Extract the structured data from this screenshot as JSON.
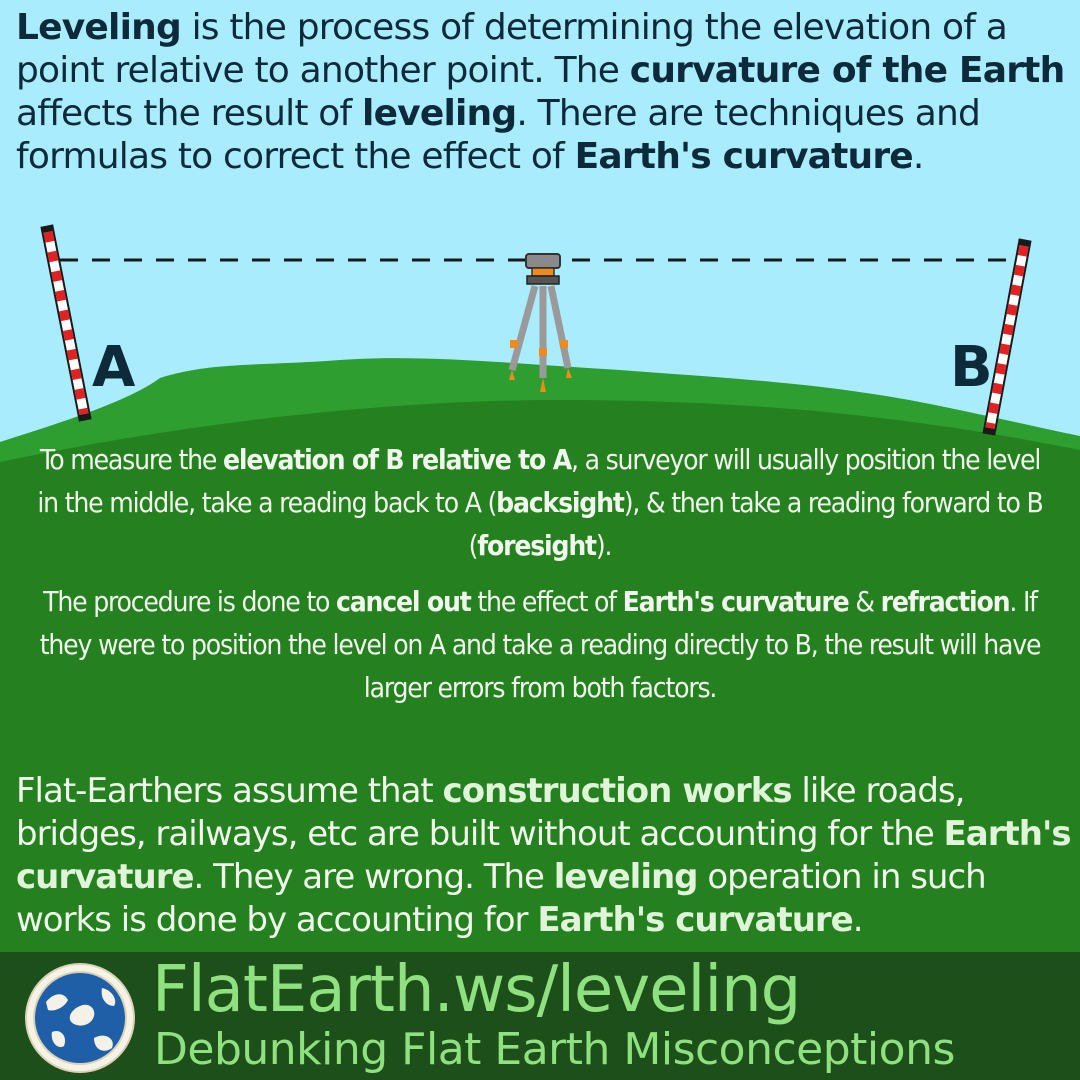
{
  "intro": [
    {
      "t": "Leveling",
      "b": true
    },
    {
      "t": " is the process of determining the elevation of a point relative to another point. The "
    },
    {
      "t": "curvature of the Earth",
      "b": true
    },
    {
      "t": " affects the result of "
    },
    {
      "t": "leveling",
      "b": true
    },
    {
      "t": ". There are techniques and formulas to correct the effect of "
    },
    {
      "t": "Earth's curvature",
      "b": true
    },
    {
      "t": "."
    }
  ],
  "diagram": {
    "point_a_label": "A",
    "point_b_label": "B"
  },
  "explanation": [
    [
      {
        "t": "To measure the "
      },
      {
        "t": "elevation of B relative to A",
        "b": true
      },
      {
        "t": ", a surveyor will usually position the level in the middle, take a reading back to A ("
      },
      {
        "t": "backsight",
        "b": true
      },
      {
        "t": "), & then take a reading forward to B ("
      },
      {
        "t": "foresight",
        "b": true
      },
      {
        "t": ")."
      }
    ],
    [
      {
        "t": "The procedure is done to "
      },
      {
        "t": "cancel out",
        "b": true
      },
      {
        "t": " the effect of "
      },
      {
        "t": "Earth's curvature",
        "b": true
      },
      {
        "t": " & "
      },
      {
        "t": "refraction",
        "b": true
      },
      {
        "t": ". If they were to position the level on A and take a reading directly to B, the result will have larger errors from both factors."
      }
    ]
  ],
  "claim": [
    {
      "t": "Flat-Earthers assume that "
    },
    {
      "t": "construction works",
      "b": true
    },
    {
      "t": " like roads, bridges, railways, etc are built without accounting for the "
    },
    {
      "t": "Earth's curvature",
      "b": true
    },
    {
      "t": ". They are wrong. The "
    },
    {
      "t": "leveling",
      "b": true
    },
    {
      "t": " operation in such works is done by accounting for "
    },
    {
      "t": "Earth's curvature",
      "b": true
    },
    {
      "t": "."
    }
  ],
  "footer": {
    "site": "FlatEarth.ws/leveling",
    "tagline": "Debunking Flat Earth Misconceptions"
  },
  "colors": {
    "sky": "#a9ecfd",
    "hill": "#2e9e30",
    "ground": "#25801f",
    "footer": "#1d4f1a",
    "footer_text": "#8fe07e",
    "heading_text": "#0d2a3a"
  }
}
